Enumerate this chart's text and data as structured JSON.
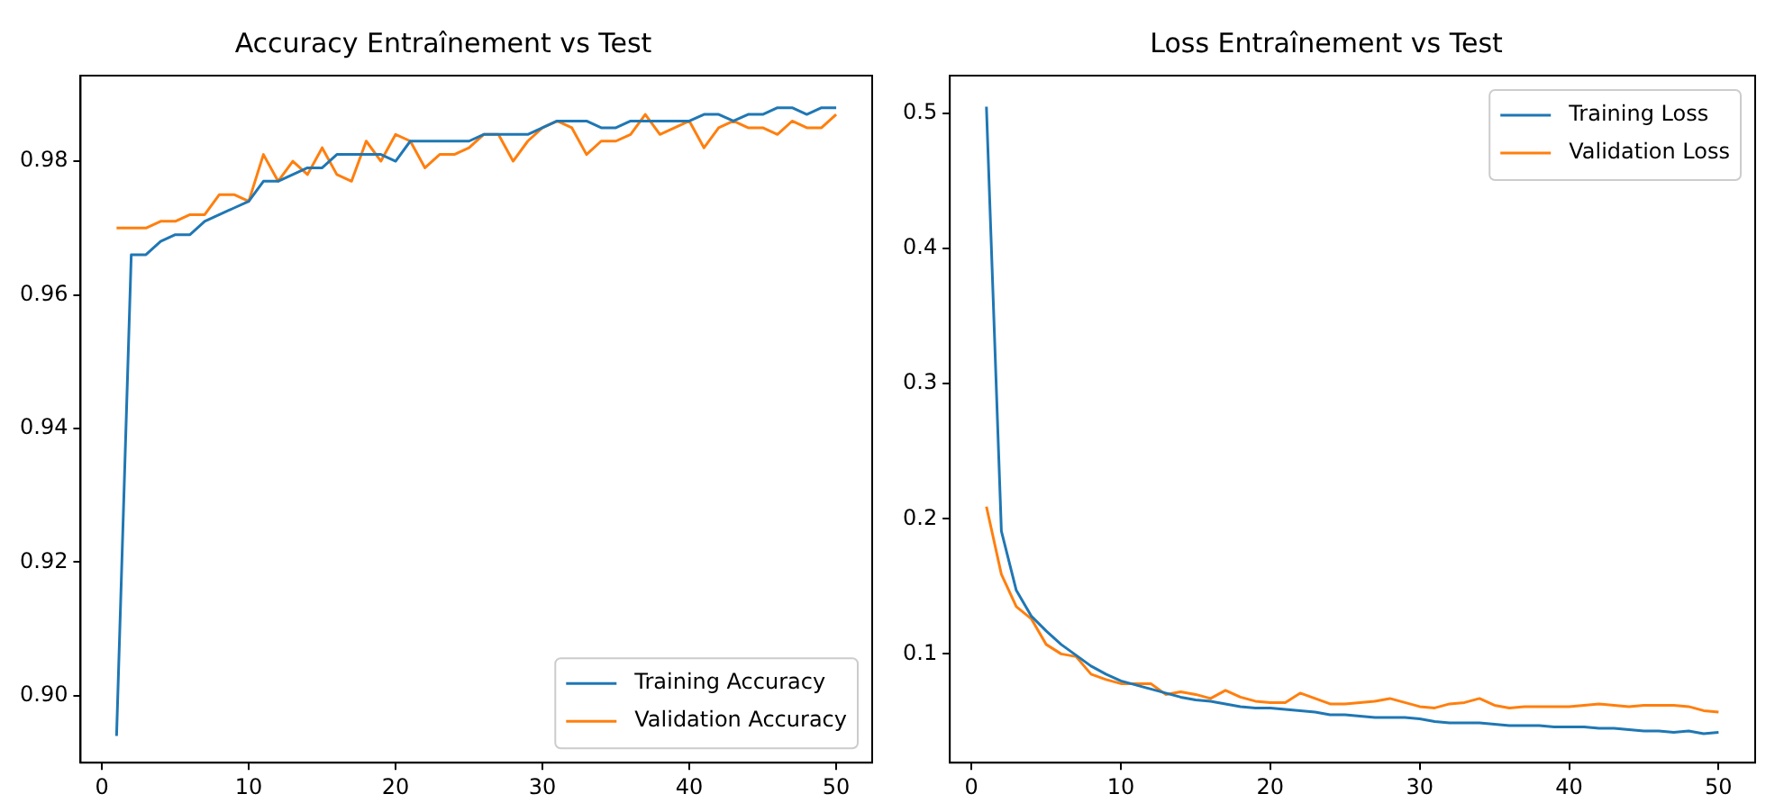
{
  "chart_data": [
    {
      "type": "line",
      "title": "Accuracy Entraînement vs Test",
      "x": [
        1,
        2,
        3,
        4,
        5,
        6,
        7,
        8,
        9,
        10,
        11,
        12,
        13,
        14,
        15,
        16,
        17,
        18,
        19,
        20,
        21,
        22,
        23,
        24,
        25,
        26,
        27,
        28,
        29,
        30,
        31,
        32,
        33,
        34,
        35,
        36,
        37,
        38,
        39,
        40,
        41,
        42,
        43,
        44,
        45,
        46,
        47,
        48,
        49,
        50
      ],
      "series": [
        {
          "name": "Training Accuracy",
          "color": "#1f77b4",
          "values": [
            0.894,
            0.966,
            0.966,
            0.968,
            0.969,
            0.969,
            0.971,
            0.972,
            0.973,
            0.974,
            0.977,
            0.977,
            0.978,
            0.979,
            0.979,
            0.981,
            0.981,
            0.981,
            0.981,
            0.98,
            0.983,
            0.983,
            0.983,
            0.983,
            0.983,
            0.984,
            0.984,
            0.984,
            0.984,
            0.985,
            0.986,
            0.986,
            0.986,
            0.985,
            0.985,
            0.986,
            0.986,
            0.986,
            0.986,
            0.986,
            0.987,
            0.987,
            0.986,
            0.987,
            0.987,
            0.988,
            0.988,
            0.987,
            0.988,
            0.988
          ]
        },
        {
          "name": "Validation Accuracy",
          "color": "#ff7f0e",
          "values": [
            0.97,
            0.97,
            0.97,
            0.971,
            0.971,
            0.972,
            0.972,
            0.975,
            0.975,
            0.974,
            0.981,
            0.977,
            0.98,
            0.978,
            0.982,
            0.978,
            0.977,
            0.983,
            0.98,
            0.984,
            0.983,
            0.979,
            0.981,
            0.981,
            0.982,
            0.984,
            0.984,
            0.98,
            0.983,
            0.985,
            0.986,
            0.985,
            0.981,
            0.983,
            0.983,
            0.984,
            0.987,
            0.984,
            0.985,
            0.986,
            0.982,
            0.985,
            0.986,
            0.985,
            0.985,
            0.984,
            0.986,
            0.985,
            0.985,
            0.987
          ]
        }
      ],
      "xlim": [
        -1.45,
        52.45
      ],
      "xticks": [
        0,
        10,
        20,
        30,
        40,
        50
      ],
      "ylim": [
        0.89,
        0.9928
      ],
      "yticks": [
        {
          "value": 0.9,
          "label": "0.90"
        },
        {
          "value": 0.92,
          "label": "0.92"
        },
        {
          "value": 0.94,
          "label": "0.94"
        },
        {
          "value": 0.96,
          "label": "0.96"
        },
        {
          "value": 0.98,
          "label": "0.98"
        }
      ],
      "legend": "bottom right",
      "marker": "none",
      "line_style": "solid"
    },
    {
      "type": "line",
      "title": "Loss Entraînement vs Test",
      "x": [
        1,
        2,
        3,
        4,
        5,
        6,
        7,
        8,
        9,
        10,
        11,
        12,
        13,
        14,
        15,
        16,
        17,
        18,
        19,
        20,
        21,
        22,
        23,
        24,
        25,
        26,
        27,
        28,
        29,
        30,
        31,
        32,
        33,
        34,
        35,
        36,
        37,
        38,
        39,
        40,
        41,
        42,
        43,
        44,
        45,
        46,
        47,
        48,
        49,
        50
      ],
      "series": [
        {
          "name": "Training Loss",
          "color": "#1f77b4",
          "values": [
            0.505,
            0.191,
            0.147,
            0.128,
            0.117,
            0.107,
            0.099,
            0.091,
            0.085,
            0.08,
            0.077,
            0.074,
            0.071,
            0.068,
            0.066,
            0.065,
            0.063,
            0.061,
            0.06,
            0.06,
            0.059,
            0.058,
            0.057,
            0.055,
            0.055,
            0.054,
            0.053,
            0.053,
            0.053,
            0.052,
            0.05,
            0.049,
            0.049,
            0.049,
            0.048,
            0.047,
            0.047,
            0.047,
            0.046,
            0.046,
            0.046,
            0.045,
            0.045,
            0.044,
            0.043,
            0.043,
            0.042,
            0.043,
            0.041,
            0.042
          ]
        },
        {
          "name": "Validation Loss",
          "color": "#ff7f0e",
          "values": [
            0.209,
            0.159,
            0.135,
            0.126,
            0.107,
            0.1,
            0.098,
            0.085,
            0.081,
            0.078,
            0.078,
            0.078,
            0.07,
            0.072,
            0.07,
            0.067,
            0.073,
            0.068,
            0.065,
            0.064,
            0.064,
            0.071,
            0.067,
            0.063,
            0.063,
            0.064,
            0.065,
            0.067,
            0.064,
            0.061,
            0.06,
            0.063,
            0.064,
            0.067,
            0.062,
            0.06,
            0.061,
            0.061,
            0.061,
            0.061,
            0.062,
            0.063,
            0.062,
            0.061,
            0.062,
            0.062,
            0.062,
            0.061,
            0.058,
            0.057
          ]
        }
      ],
      "xlim": [
        -1.45,
        52.45
      ],
      "xticks": [
        0,
        10,
        20,
        30,
        40,
        50
      ],
      "ylim": [
        0.0195,
        0.528
      ],
      "yticks": [
        0.1,
        0.2,
        0.3,
        0.4,
        0.5
      ],
      "legend": "top right",
      "marker": "none",
      "line_style": "solid"
    }
  ]
}
